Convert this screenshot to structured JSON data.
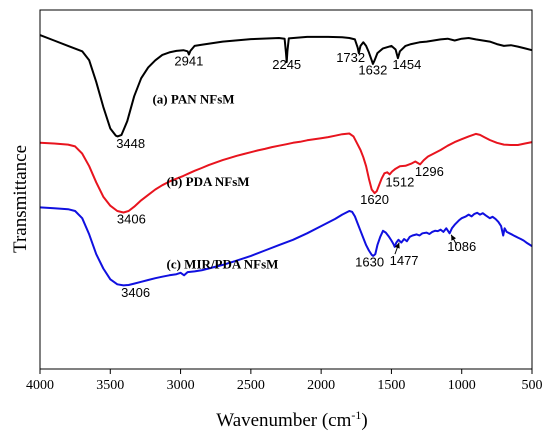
{
  "chart_data": {
    "type": "line",
    "xlabel": "Wavenumber (cm",
    "xlabel_sup": "-1",
    "xlabel_close": ")",
    "ylabel": "Transmittance",
    "xlim": [
      4000,
      500
    ],
    "x_reversed": true,
    "xticks": [
      4000,
      3500,
      3000,
      2500,
      2000,
      1500,
      1000,
      500
    ],
    "y_axis_values": false,
    "series": [
      {
        "name": "(a) PAN NFsM",
        "color": "#000000",
        "points": [
          [
            4000,
            0.93
          ],
          [
            3900,
            0.915
          ],
          [
            3800,
            0.9
          ],
          [
            3700,
            0.885
          ],
          [
            3650,
            0.86
          ],
          [
            3600,
            0.8
          ],
          [
            3550,
            0.73
          ],
          [
            3500,
            0.67
          ],
          [
            3460,
            0.65
          ],
          [
            3448,
            0.648
          ],
          [
            3420,
            0.652
          ],
          [
            3380,
            0.69
          ],
          [
            3330,
            0.76
          ],
          [
            3280,
            0.81
          ],
          [
            3230,
            0.84
          ],
          [
            3180,
            0.86
          ],
          [
            3130,
            0.875
          ],
          [
            3080,
            0.882
          ],
          [
            3030,
            0.886
          ],
          [
            2980,
            0.888
          ],
          [
            2950,
            0.885
          ],
          [
            2941,
            0.876
          ],
          [
            2930,
            0.886
          ],
          [
            2900,
            0.9
          ],
          [
            2850,
            0.903
          ],
          [
            2700,
            0.912
          ],
          [
            2500,
            0.919
          ],
          [
            2300,
            0.922
          ],
          [
            2260,
            0.92
          ],
          [
            2250,
            0.88
          ],
          [
            2245,
            0.855
          ],
          [
            2240,
            0.885
          ],
          [
            2230,
            0.921
          ],
          [
            2100,
            0.925
          ],
          [
            1950,
            0.925
          ],
          [
            1850,
            0.924
          ],
          [
            1800,
            0.922
          ],
          [
            1760,
            0.918
          ],
          [
            1740,
            0.895
          ],
          [
            1732,
            0.88
          ],
          [
            1720,
            0.9
          ],
          [
            1700,
            0.91
          ],
          [
            1680,
            0.9
          ],
          [
            1660,
            0.882
          ],
          [
            1640,
            0.86
          ],
          [
            1632,
            0.85
          ],
          [
            1620,
            0.86
          ],
          [
            1600,
            0.88
          ],
          [
            1560,
            0.893
          ],
          [
            1500,
            0.9
          ],
          [
            1470,
            0.89
          ],
          [
            1454,
            0.866
          ],
          [
            1440,
            0.885
          ],
          [
            1400,
            0.9
          ],
          [
            1360,
            0.905
          ],
          [
            1300,
            0.91
          ],
          [
            1250,
            0.912
          ],
          [
            1200,
            0.915
          ],
          [
            1150,
            0.918
          ],
          [
            1100,
            0.92
          ],
          [
            1050,
            0.915
          ],
          [
            1000,
            0.92
          ],
          [
            950,
            0.922
          ],
          [
            900,
            0.918
          ],
          [
            850,
            0.915
          ],
          [
            800,
            0.912
          ],
          [
            750,
            0.905
          ],
          [
            700,
            0.9
          ],
          [
            650,
            0.902
          ],
          [
            600,
            0.898
          ],
          [
            550,
            0.893
          ],
          [
            500,
            0.888
          ]
        ]
      },
      {
        "name": "(b) PDA NFsM",
        "color": "#e8141e",
        "points": [
          [
            4000,
            0.63
          ],
          [
            3900,
            0.628
          ],
          [
            3800,
            0.625
          ],
          [
            3750,
            0.62
          ],
          [
            3700,
            0.6
          ],
          [
            3650,
            0.565
          ],
          [
            3600,
            0.52
          ],
          [
            3550,
            0.48
          ],
          [
            3500,
            0.455
          ],
          [
            3450,
            0.44
          ],
          [
            3406,
            0.436
          ],
          [
            3370,
            0.44
          ],
          [
            3330,
            0.452
          ],
          [
            3280,
            0.47
          ],
          [
            3230,
            0.485
          ],
          [
            3180,
            0.5
          ],
          [
            3130,
            0.512
          ],
          [
            3080,
            0.522
          ],
          [
            3030,
            0.53
          ],
          [
            2980,
            0.538
          ],
          [
            2940,
            0.545
          ],
          [
            2900,
            0.552
          ],
          [
            2850,
            0.56
          ],
          [
            2800,
            0.568
          ],
          [
            2750,
            0.575
          ],
          [
            2700,
            0.582
          ],
          [
            2650,
            0.588
          ],
          [
            2600,
            0.594
          ],
          [
            2550,
            0.599
          ],
          [
            2500,
            0.604
          ],
          [
            2450,
            0.609
          ],
          [
            2400,
            0.613
          ],
          [
            2350,
            0.618
          ],
          [
            2300,
            0.622
          ],
          [
            2250,
            0.626
          ],
          [
            2200,
            0.63
          ],
          [
            2150,
            0.633
          ],
          [
            2100,
            0.637
          ],
          [
            2050,
            0.64
          ],
          [
            2000,
            0.643
          ],
          [
            1950,
            0.646
          ],
          [
            1900,
            0.65
          ],
          [
            1850,
            0.654
          ],
          [
            1800,
            0.656
          ],
          [
            1770,
            0.648
          ],
          [
            1740,
            0.625
          ],
          [
            1720,
            0.61
          ],
          [
            1700,
            0.59
          ],
          [
            1680,
            0.565
          ],
          [
            1660,
            0.53
          ],
          [
            1640,
            0.5
          ],
          [
            1620,
            0.49
          ],
          [
            1605,
            0.495
          ],
          [
            1590,
            0.51
          ],
          [
            1570,
            0.53
          ],
          [
            1550,
            0.545
          ],
          [
            1530,
            0.548
          ],
          [
            1512,
            0.542
          ],
          [
            1495,
            0.55
          ],
          [
            1470,
            0.558
          ],
          [
            1440,
            0.565
          ],
          [
            1400,
            0.566
          ],
          [
            1360,
            0.572
          ],
          [
            1330,
            0.578
          ],
          [
            1296,
            0.57
          ],
          [
            1270,
            0.582
          ],
          [
            1240,
            0.592
          ],
          [
            1200,
            0.6
          ],
          [
            1150,
            0.61
          ],
          [
            1100,
            0.622
          ],
          [
            1050,
            0.632
          ],
          [
            1000,
            0.64
          ],
          [
            950,
            0.648
          ],
          [
            900,
            0.655
          ],
          [
            870,
            0.652
          ],
          [
            840,
            0.646
          ],
          [
            800,
            0.638
          ],
          [
            750,
            0.63
          ],
          [
            700,
            0.625
          ],
          [
            650,
            0.624
          ],
          [
            600,
            0.624
          ],
          [
            550,
            0.628
          ],
          [
            500,
            0.632
          ]
        ]
      },
      {
        "name": "(c) MIR/PDA NFsM",
        "color": "#1010e0",
        "points": [
          [
            4000,
            0.45
          ],
          [
            3900,
            0.448
          ],
          [
            3800,
            0.445
          ],
          [
            3750,
            0.44
          ],
          [
            3700,
            0.42
          ],
          [
            3650,
            0.375
          ],
          [
            3600,
            0.32
          ],
          [
            3550,
            0.28
          ],
          [
            3500,
            0.25
          ],
          [
            3450,
            0.236
          ],
          [
            3406,
            0.233
          ],
          [
            3370,
            0.234
          ],
          [
            3330,
            0.238
          ],
          [
            3280,
            0.243
          ],
          [
            3230,
            0.248
          ],
          [
            3180,
            0.253
          ],
          [
            3130,
            0.257
          ],
          [
            3080,
            0.261
          ],
          [
            3030,
            0.264
          ],
          [
            3000,
            0.268
          ],
          [
            2975,
            0.261
          ],
          [
            2950,
            0.27
          ],
          [
            2900,
            0.272
          ],
          [
            2850,
            0.275
          ],
          [
            2800,
            0.28
          ],
          [
            2700,
            0.29
          ],
          [
            2600,
            0.302
          ],
          [
            2500,
            0.315
          ],
          [
            2400,
            0.33
          ],
          [
            2300,
            0.345
          ],
          [
            2200,
            0.36
          ],
          [
            2100,
            0.378
          ],
          [
            2000,
            0.398
          ],
          [
            1900,
            0.418
          ],
          [
            1850,
            0.43
          ],
          [
            1800,
            0.44
          ],
          [
            1780,
            0.438
          ],
          [
            1760,
            0.425
          ],
          [
            1740,
            0.405
          ],
          [
            1720,
            0.385
          ],
          [
            1700,
            0.365
          ],
          [
            1680,
            0.345
          ],
          [
            1660,
            0.33
          ],
          [
            1640,
            0.318
          ],
          [
            1630,
            0.315
          ],
          [
            1615,
            0.32
          ],
          [
            1600,
            0.345
          ],
          [
            1580,
            0.368
          ],
          [
            1560,
            0.385
          ],
          [
            1540,
            0.38
          ],
          [
            1520,
            0.37
          ],
          [
            1500,
            0.358
          ],
          [
            1485,
            0.348
          ],
          [
            1477,
            0.34
          ],
          [
            1465,
            0.352
          ],
          [
            1450,
            0.36
          ],
          [
            1430,
            0.352
          ],
          [
            1410,
            0.362
          ],
          [
            1390,
            0.356
          ],
          [
            1370,
            0.368
          ],
          [
            1350,
            0.372
          ],
          [
            1320,
            0.375
          ],
          [
            1300,
            0.372
          ],
          [
            1280,
            0.378
          ],
          [
            1250,
            0.38
          ],
          [
            1230,
            0.376
          ],
          [
            1210,
            0.382
          ],
          [
            1190,
            0.385
          ],
          [
            1170,
            0.384
          ],
          [
            1150,
            0.388
          ],
          [
            1130,
            0.382
          ],
          [
            1110,
            0.392
          ],
          [
            1100,
            0.386
          ],
          [
            1086,
            0.378
          ],
          [
            1070,
            0.392
          ],
          [
            1050,
            0.402
          ],
          [
            1020,
            0.414
          ],
          [
            1000,
            0.42
          ],
          [
            970,
            0.425
          ],
          [
            950,
            0.43
          ],
          [
            930,
            0.425
          ],
          [
            910,
            0.432
          ],
          [
            890,
            0.435
          ],
          [
            870,
            0.43
          ],
          [
            850,
            0.434
          ],
          [
            830,
            0.428
          ],
          [
            800,
            0.42
          ],
          [
            780,
            0.424
          ],
          [
            760,
            0.418
          ],
          [
            740,
            0.41
          ],
          [
            720,
            0.398
          ],
          [
            705,
            0.372
          ],
          [
            695,
            0.392
          ],
          [
            680,
            0.382
          ],
          [
            660,
            0.378
          ],
          [
            640,
            0.374
          ],
          [
            620,
            0.37
          ],
          [
            600,
            0.366
          ],
          [
            580,
            0.362
          ],
          [
            560,
            0.358
          ],
          [
            540,
            0.352
          ],
          [
            520,
            0.347
          ],
          [
            500,
            0.342
          ]
        ]
      }
    ],
    "series_labels": [
      {
        "text": "(a) PAN NFsM",
        "x": 3200,
        "y": 0.74
      },
      {
        "text": "(b) PDA NFsM",
        "x": 3100,
        "y": 0.51
      },
      {
        "text": "(c) MIR/PDA NFsM",
        "x": 3100,
        "y": 0.28
      }
    ],
    "annotations": [
      {
        "text": "2941",
        "x": 2941,
        "y": 0.845
      },
      {
        "text": "2245",
        "x": 2245,
        "y": 0.835
      },
      {
        "text": "1732",
        "x": 1790,
        "y": 0.855
      },
      {
        "text": "1632",
        "x": 1632,
        "y": 0.82
      },
      {
        "text": "1454",
        "x": 1390,
        "y": 0.835
      },
      {
        "text": "3448",
        "x": 3355,
        "y": 0.615
      },
      {
        "text": "3406",
        "x": 3350,
        "y": 0.405
      },
      {
        "text": "1620",
        "x": 1620,
        "y": 0.46
      },
      {
        "text": "1512",
        "x": 1440,
        "y": 0.508
      },
      {
        "text": "1296",
        "x": 1230,
        "y": 0.538
      },
      {
        "text": "3406",
        "x": 3320,
        "y": 0.2
      },
      {
        "text": "1630",
        "x": 1655,
        "y": 0.285
      },
      {
        "text": "1477",
        "x": 1410,
        "y": 0.29
      },
      {
        "text": "1086",
        "x": 1000,
        "y": 0.328
      }
    ],
    "arrows": [
      {
        "from": [
          1475,
          0.32
        ],
        "to": [
          1445,
          0.352
        ]
      },
      {
        "from": [
          1035,
          0.345
        ],
        "to": [
          1075,
          0.374
        ]
      }
    ]
  }
}
